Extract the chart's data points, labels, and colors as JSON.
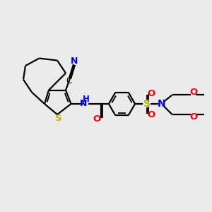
{
  "bg_color": "#ebebeb",
  "bond_color": "#000000",
  "S_color": "#bbbb00",
  "N_color": "#0000ff",
  "O_color": "#ff0000",
  "C_color": "#000000",
  "lw": 1.6,
  "figsize": [
    3.0,
    3.0
  ],
  "dpi": 100,
  "xlim": [
    0,
    10
  ],
  "ylim": [
    0,
    10
  ]
}
